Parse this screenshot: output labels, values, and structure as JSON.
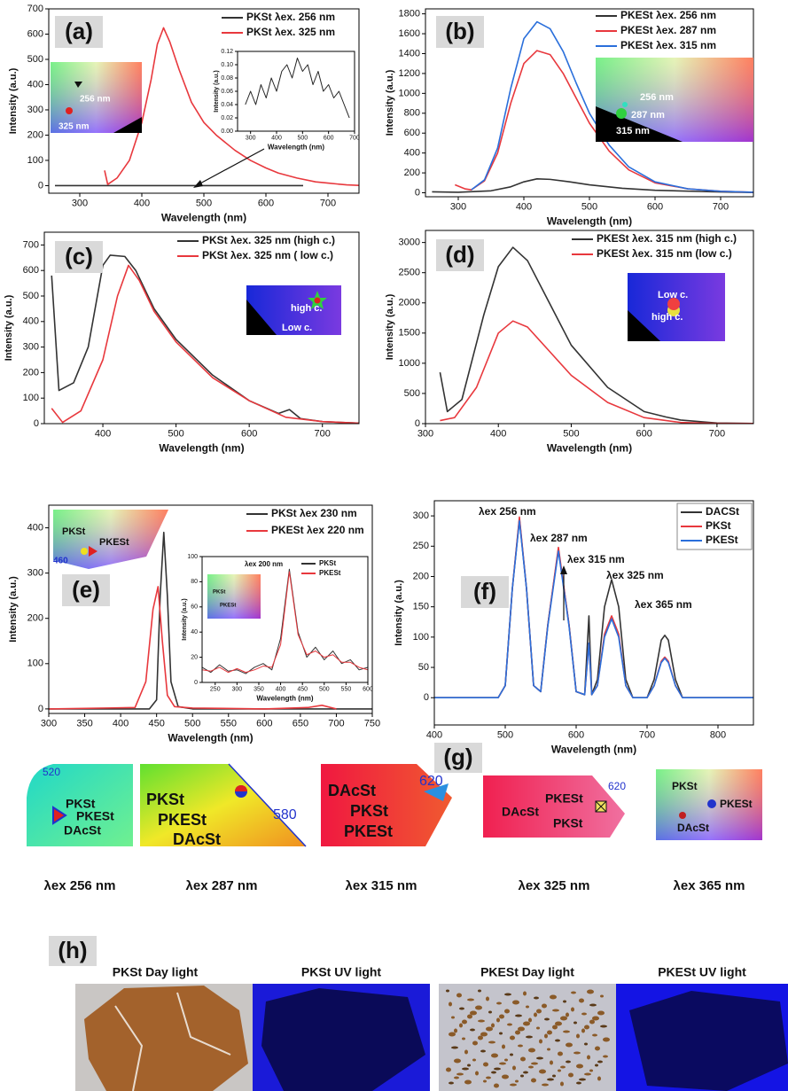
{
  "chart_data": [
    {
      "type": "line",
      "panel_label": "(a)",
      "xlabel": "Wavelength (nm)",
      "ylabel": "Intensity (a.u.)",
      "xlim": [
        250,
        750
      ],
      "xticks": [
        300,
        400,
        500,
        600,
        700
      ],
      "ylim": [
        -30,
        700
      ],
      "yticks": [
        0,
        100,
        200,
        300,
        400,
        500,
        600,
        700
      ],
      "series": [
        {
          "name": "PKSt λex. 256 nm",
          "color": "#333333",
          "x": [
            260,
            660
          ],
          "values": [
            0,
            0
          ]
        },
        {
          "name": "PKSt λex. 325 nm",
          "color": "#e8383d",
          "x": [
            340,
            345,
            360,
            380,
            400,
            415,
            425,
            435,
            445,
            460,
            480,
            500,
            520,
            550,
            575,
            600,
            620,
            650,
            680,
            700,
            730,
            750
          ],
          "values": [
            60,
            5,
            30,
            100,
            250,
            420,
            560,
            625,
            570,
            460,
            330,
            250,
            200,
            140,
            100,
            70,
            50,
            30,
            15,
            10,
            3,
            1
          ]
        }
      ],
      "annotations": [
        "256 nm",
        "325 nm"
      ],
      "inset": {
        "type": "line",
        "xlabel": "Wavelength (nm)",
        "ylabel": "Intensity (a.u.)",
        "xlim": [
          250,
          700
        ],
        "xticks": [
          300,
          400,
          500,
          600,
          700
        ],
        "ylim": [
          0,
          0.12
        ],
        "yticks": [
          {
            "value": 0,
            "label": "0.00"
          },
          0.02,
          0.04,
          0.06,
          0.08,
          {
            "value": 0.1,
            "label": "0.10"
          },
          0.12
        ],
        "series": [
          {
            "color": "#222222",
            "x": [
              280,
              300,
              320,
              340,
              360,
              380,
              400,
              420,
              440,
              460,
              480,
              500,
              520,
              540,
              560,
              580,
              600,
              620,
              640,
              660,
              680
            ],
            "values": [
              0.04,
              0.06,
              0.04,
              0.07,
              0.05,
              0.08,
              0.06,
              0.09,
              0.1,
              0.08,
              0.11,
              0.09,
              0.1,
              0.07,
              0.09,
              0.06,
              0.07,
              0.05,
              0.06,
              0.04,
              0.02
            ]
          }
        ]
      }
    },
    {
      "type": "line",
      "panel_label": "(b)",
      "xlabel": "Wavelength (nm)",
      "ylabel": "Intensity (a.u.)",
      "xlim": [
        250,
        750
      ],
      "xticks": [
        300,
        400,
        500,
        600,
        700
      ],
      "ylim": [
        -40,
        1850
      ],
      "yticks": [
        0,
        200,
        400,
        600,
        800,
        1000,
        1200,
        1400,
        1600,
        1800
      ],
      "series": [
        {
          "name": "PKESt λex. 256 nm",
          "color": "#333333",
          "x": [
            260,
            300,
            350,
            380,
            400,
            420,
            440,
            470,
            500,
            550,
            600,
            700,
            750
          ],
          "values": [
            10,
            5,
            20,
            60,
            110,
            140,
            135,
            110,
            80,
            45,
            25,
            8,
            3
          ]
        },
        {
          "name": "PKESt λex. 287 nm",
          "color": "#e8383d",
          "x": [
            295,
            310,
            320,
            340,
            360,
            380,
            400,
            420,
            440,
            460,
            480,
            500,
            530,
            560,
            600,
            650,
            700,
            750
          ],
          "values": [
            80,
            40,
            30,
            120,
            400,
            900,
            1300,
            1430,
            1390,
            1200,
            950,
            700,
            420,
            230,
            100,
            40,
            15,
            5
          ]
        },
        {
          "name": "PKESt λex. 315 nm",
          "color": "#2a6fdb",
          "x": [
            320,
            340,
            360,
            380,
            400,
            420,
            440,
            460,
            480,
            500,
            530,
            560,
            600,
            650,
            700,
            750
          ],
          "values": [
            30,
            130,
            450,
            1050,
            1550,
            1720,
            1650,
            1420,
            1100,
            800,
            480,
            260,
            110,
            40,
            15,
            5
          ]
        }
      ],
      "annotations": [
        "256 nm",
        "287 nm",
        "315 nm"
      ]
    },
    {
      "type": "line",
      "panel_label": "(c)",
      "xlabel": "Wavelength (nm)",
      "ylabel": "Intensity (a.u.)",
      "xlim": [
        320,
        750
      ],
      "xticks": [
        400,
        500,
        600,
        700
      ],
      "ylim": [
        0,
        750
      ],
      "yticks": [
        0,
        100,
        200,
        300,
        400,
        500,
        600,
        700
      ],
      "series": [
        {
          "name": "PKSt λex. 325 nm (high c.)",
          "color": "#333333",
          "x": [
            330,
            340,
            360,
            380,
            400,
            410,
            430,
            445,
            470,
            500,
            550,
            600,
            640,
            655,
            670,
            700,
            750
          ],
          "values": [
            580,
            130,
            160,
            300,
            620,
            660,
            655,
            600,
            450,
            330,
            190,
            90,
            40,
            55,
            20,
            8,
            2
          ]
        },
        {
          "name": "PKSt λex. 325 nm ( low c.)",
          "color": "#e8383d",
          "x": [
            330,
            345,
            370,
            400,
            420,
            435,
            450,
            470,
            500,
            550,
            600,
            650,
            700,
            750
          ],
          "values": [
            60,
            5,
            50,
            250,
            500,
            620,
            560,
            440,
            320,
            180,
            90,
            25,
            8,
            2
          ]
        }
      ],
      "annotations": [
        "high c.",
        "Low c."
      ]
    },
    {
      "type": "line",
      "panel_label": "(d)",
      "xlabel": "Wavelength (nm)",
      "ylabel": "Intensity (a.u.)",
      "xlim": [
        300,
        750
      ],
      "xticks": [
        300,
        400,
        500,
        600,
        700
      ],
      "ylim": [
        0,
        3200
      ],
      "yticks": [
        0,
        500,
        1000,
        1500,
        2000,
        2500,
        3000
      ],
      "series": [
        {
          "name": "PKESt λex. 315 nm (high c.)",
          "color": "#333333",
          "x": [
            320,
            330,
            350,
            380,
            400,
            420,
            440,
            470,
            500,
            550,
            600,
            630,
            650,
            700,
            750
          ],
          "values": [
            850,
            200,
            400,
            1800,
            2600,
            2920,
            2700,
            2000,
            1300,
            600,
            200,
            110,
            60,
            10,
            3
          ]
        },
        {
          "name": "PKESt λex. 315 nm (low c.)",
          "color": "#e8383d",
          "x": [
            320,
            340,
            370,
            400,
            420,
            440,
            470,
            500,
            550,
            600,
            650,
            700,
            750
          ],
          "values": [
            50,
            100,
            600,
            1500,
            1700,
            1600,
            1200,
            800,
            350,
            100,
            20,
            5,
            2
          ]
        }
      ],
      "annotations": [
        "Low c.",
        "high c."
      ]
    },
    {
      "type": "line",
      "panel_label": "(e)",
      "xlabel": "Wavelength (nm)",
      "ylabel": "Intensity (a.u.)",
      "xlim": [
        300,
        750
      ],
      "xticks": [
        300,
        350,
        400,
        450,
        500,
        550,
        600,
        650,
        700,
        750
      ],
      "ylim": [
        -10,
        450
      ],
      "yticks": [
        0,
        100,
        200,
        300,
        400
      ],
      "series": [
        {
          "name": "PKSt λex 230 nm",
          "color": "#333333",
          "x": [
            300,
            440,
            450,
            455,
            460,
            465,
            470,
            480,
            500,
            750
          ],
          "values": [
            0,
            0,
            20,
            250,
            390,
            250,
            60,
            5,
            0,
            0
          ]
        },
        {
          "name": "PKESt λex 220 nm",
          "color": "#e8383d",
          "x": [
            300,
            420,
            435,
            445,
            452,
            458,
            465,
            475,
            500,
            600,
            660,
            680,
            700
          ],
          "values": [
            0,
            3,
            60,
            220,
            270,
            150,
            30,
            5,
            2,
            0,
            3,
            8,
            0
          ]
        }
      ],
      "annotations": [
        "PKSt",
        "PKESt",
        "460"
      ],
      "inset": {
        "type": "line",
        "xlabel": "Wavelength (nm)",
        "ylabel": "Intensity (a.u.)",
        "xlim": [
          220,
          600
        ],
        "xticks": [
          250,
          300,
          350,
          400,
          450,
          500,
          550,
          600
        ],
        "ylim": [
          0,
          100
        ],
        "yticks": [
          0,
          20,
          40,
          60,
          80,
          100
        ],
        "series": [
          {
            "name": "PKSt",
            "color": "#333333",
            "x": [
              220,
              240,
              260,
              280,
              300,
              320,
              340,
              360,
              380,
              400,
              420,
              440,
              460,
              480,
              500,
              520,
              540,
              560,
              580,
              600
            ],
            "values": [
              12,
              8,
              14,
              9,
              10,
              7,
              12,
              15,
              10,
              35,
              90,
              40,
              20,
              28,
              18,
              25,
              15,
              18,
              10,
              12
            ]
          },
          {
            "name": "PKESt",
            "color": "#e8383d",
            "x": [
              220,
              240,
              260,
              280,
              300,
              320,
              340,
              360,
              380,
              400,
              420,
              440,
              460,
              480,
              500,
              520,
              540,
              560,
              580,
              600
            ],
            "values": [
              10,
              9,
              12,
              8,
              11,
              8,
              10,
              13,
              12,
              30,
              88,
              38,
              22,
              25,
              20,
              22,
              16,
              16,
              12,
              10
            ]
          }
        ],
        "annotations": [
          "λex 200 nm",
          "PKSt",
          "PKESt"
        ]
      }
    },
    {
      "type": "line",
      "panel_label": "(f)",
      "xlabel": "Wavelength (nm)",
      "ylabel": "Intensity (a.u.)",
      "xlim": [
        400,
        850
      ],
      "xticks": [
        400,
        500,
        600,
        700,
        800
      ],
      "ylim": [
        -45,
        325
      ],
      "yticks": [
        0,
        50,
        100,
        150,
        200,
        250,
        300
      ],
      "series": [
        {
          "name": "DACSt",
          "color": "#333333",
          "x": [
            400,
            490,
            500,
            510,
            520,
            530,
            540,
            550,
            560,
            575,
            590,
            600,
            612,
            618,
            622,
            630,
            640,
            650,
            660,
            670,
            680,
            700,
            710,
            720,
            725,
            730,
            740,
            750,
            850
          ],
          "values": [
            0,
            0,
            20,
            180,
            295,
            180,
            20,
            10,
            120,
            245,
            120,
            10,
            5,
            135,
            5,
            30,
            150,
            195,
            150,
            30,
            0,
            0,
            30,
            95,
            103,
            95,
            30,
            0,
            0
          ]
        },
        {
          "name": "PKSt",
          "color": "#e8383d",
          "x": [
            400,
            490,
            500,
            510,
            520,
            530,
            540,
            550,
            560,
            575,
            590,
            600,
            612,
            618,
            622,
            630,
            640,
            650,
            660,
            670,
            680,
            700,
            710,
            720,
            725,
            730,
            740,
            750,
            850
          ],
          "values": [
            0,
            0,
            20,
            180,
            298,
            180,
            20,
            10,
            120,
            248,
            120,
            10,
            5,
            90,
            5,
            20,
            105,
            135,
            105,
            20,
            0,
            0,
            20,
            60,
            67,
            60,
            20,
            0,
            0
          ]
        },
        {
          "name": "PKESt",
          "color": "#2a6fdb",
          "x": [
            400,
            490,
            500,
            510,
            520,
            530,
            540,
            550,
            560,
            575,
            590,
            600,
            612,
            618,
            622,
            630,
            640,
            650,
            660,
            670,
            680,
            700,
            710,
            720,
            725,
            730,
            740,
            750,
            850
          ],
          "values": [
            0,
            0,
            20,
            180,
            292,
            180,
            20,
            10,
            118,
            242,
            118,
            10,
            5,
            90,
            5,
            20,
            100,
            130,
            100,
            20,
            0,
            0,
            20,
            58,
            65,
            58,
            20,
            0,
            0
          ]
        }
      ],
      "annotations": [
        "λex 256 nm",
        "λex 287 nm",
        "λex 315 nm",
        "λex 325 nm",
        "λex 365 nm"
      ]
    }
  ],
  "color_diagrams": {
    "panel_label": "(g)",
    "items": [
      {
        "labels": [
          "PKSt",
          "PKESt",
          "DAcSt",
          "520"
        ],
        "caption": "λex 256 nm"
      },
      {
        "labels": [
          "PKSt",
          "PKESt",
          "DAcSt",
          "580"
        ],
        "caption": "λex 287 nm"
      },
      {
        "labels": [
          "DAcSt",
          "PKSt",
          "PKESt",
          "620"
        ],
        "caption": "λex 315 nm"
      },
      {
        "labels": [
          "PKESt",
          "DAcSt",
          "PKSt",
          "620"
        ],
        "caption": "λex 325 nm"
      },
      {
        "labels": [
          "PKSt",
          "PKESt",
          "DAcSt"
        ],
        "caption": "λex 365 nm"
      }
    ]
  },
  "photos": {
    "panel_label": "(h)",
    "captions": [
      "PKSt Day light",
      "PKSt UV light",
      "PKESt Day light",
      "PKESt UV light"
    ]
  }
}
